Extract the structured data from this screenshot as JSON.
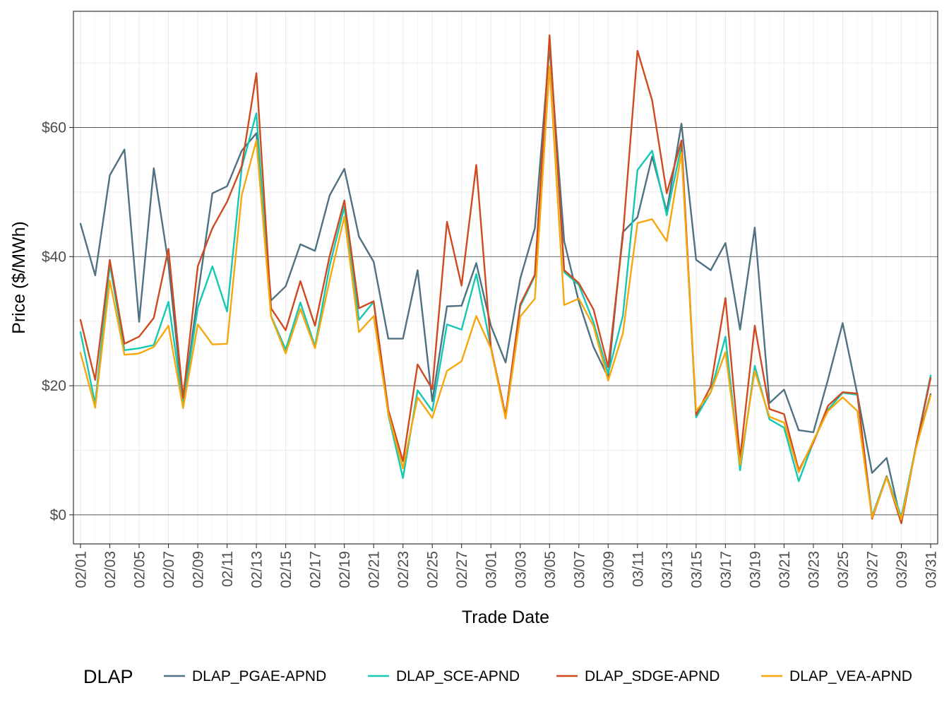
{
  "chart_data": {
    "type": "line",
    "title": "",
    "xlabel": "Trade Date",
    "ylabel": "Price ($/MWh)",
    "ylim": [
      -4.5,
      78
    ],
    "y_ticks": [
      0,
      20,
      40,
      60
    ],
    "y_tick_labels": [
      "$0",
      "$20",
      "$40",
      "$60"
    ],
    "x_tick_labels": [
      "02/01",
      "02/03",
      "02/05",
      "02/07",
      "02/09",
      "02/11",
      "02/13",
      "02/15",
      "02/17",
      "02/19",
      "02/21",
      "02/23",
      "02/25",
      "02/27",
      "03/01",
      "03/03",
      "03/05",
      "03/07",
      "03/09",
      "03/11",
      "03/13",
      "03/15",
      "03/17",
      "03/19",
      "03/21",
      "03/23",
      "03/25",
      "03/27",
      "03/29",
      "03/31"
    ],
    "dates": [
      "02/01",
      "02/02",
      "02/03",
      "02/04",
      "02/05",
      "02/06",
      "02/07",
      "02/08",
      "02/09",
      "02/10",
      "02/11",
      "02/12",
      "02/13",
      "02/14",
      "02/15",
      "02/16",
      "02/17",
      "02/18",
      "02/19",
      "02/20",
      "02/21",
      "02/22",
      "02/23",
      "02/24",
      "02/25",
      "02/26",
      "02/27",
      "02/28",
      "03/01",
      "03/02",
      "03/03",
      "03/04",
      "03/05",
      "03/06",
      "03/07",
      "03/08",
      "03/09",
      "03/10",
      "03/11",
      "03/12",
      "03/13",
      "03/14",
      "03/15",
      "03/16",
      "03/17",
      "03/18",
      "03/19",
      "03/20",
      "03/21",
      "03/22",
      "03/23",
      "03/24",
      "03/25",
      "03/26",
      "03/27",
      "03/28",
      "03/29",
      "03/30",
      "03/31"
    ],
    "grid": true,
    "legend_title": "DLAP",
    "legend_position": "bottom",
    "series": [
      {
        "name": "DLAP_PGAE-APND",
        "color": "#4E7282",
        "values": [
          45.1,
          37.1,
          52.6,
          56.6,
          29.9,
          53.7,
          38.9,
          17.0,
          34.0,
          49.8,
          50.9,
          56.4,
          59.1,
          33.2,
          35.4,
          41.9,
          40.9,
          49.5,
          53.6,
          43.1,
          39.2,
          27.3,
          27.3,
          37.9,
          17.6,
          32.3,
          32.4,
          39.0,
          29.3,
          23.6,
          36.6,
          44.4,
          72.6,
          42.4,
          33.0,
          26.0,
          21.3,
          43.8,
          46.1,
          55.5,
          47.0,
          60.6,
          39.5,
          37.9,
          42.1,
          28.7,
          44.5,
          17.3,
          19.4,
          13.1,
          12.8,
          21.0,
          29.7,
          18.7,
          6.5,
          8.8,
          -1.2,
          10.6,
          18.7
        ]
      },
      {
        "name": "DLAP_SCE-APND",
        "color": "#14C8B2",
        "values": [
          28.3,
          17.2,
          38.8,
          25.5,
          25.8,
          26.3,
          33.0,
          17.0,
          32.1,
          38.5,
          31.5,
          53.8,
          62.2,
          30.8,
          25.6,
          32.9,
          26.1,
          38.6,
          47.7,
          30.2,
          33.0,
          15.5,
          5.7,
          19.3,
          16.1,
          29.5,
          28.7,
          37.3,
          25.9,
          15.0,
          32.3,
          37.0,
          74.0,
          37.6,
          35.6,
          29.8,
          21.9,
          30.8,
          53.4,
          56.4,
          46.4,
          57.2,
          15.1,
          19.0,
          27.6,
          6.9,
          23.1,
          14.8,
          13.5,
          5.2,
          11.3,
          16.3,
          18.9,
          18.6,
          -0.2,
          6.0,
          -0.3,
          10.6,
          21.6
        ]
      },
      {
        "name": "DLAP_SDGE-APND",
        "color": "#D04A20",
        "values": [
          30.2,
          20.9,
          39.5,
          26.5,
          27.6,
          30.5,
          41.2,
          18.1,
          38.5,
          44.4,
          48.5,
          54.0,
          68.4,
          32.0,
          28.6,
          36.2,
          29.3,
          40.1,
          48.7,
          32.0,
          33.1,
          16.3,
          8.3,
          23.3,
          19.5,
          45.4,
          35.5,
          54.2,
          26.0,
          15.4,
          32.6,
          37.2,
          74.3,
          37.9,
          35.9,
          31.8,
          22.9,
          43.1,
          71.9,
          64.2,
          49.8,
          58.0,
          15.5,
          19.9,
          33.6,
          8.7,
          29.3,
          16.4,
          15.6,
          6.9,
          11.2,
          16.9,
          19.0,
          18.8,
          -0.6,
          5.9,
          -1.3,
          10.5,
          21.2
        ]
      },
      {
        "name": "DLAP_VEA-APND",
        "color": "#F7A70E",
        "values": [
          25.1,
          16.6,
          36.3,
          24.8,
          25.0,
          26.0,
          29.3,
          16.5,
          29.5,
          26.4,
          26.5,
          49.5,
          58.0,
          30.7,
          25.0,
          31.9,
          25.8,
          36.4,
          46.2,
          28.3,
          30.8,
          15.7,
          7.2,
          18.2,
          15.0,
          22.3,
          23.8,
          30.8,
          25.8,
          14.9,
          30.7,
          33.5,
          69.5,
          32.5,
          33.5,
          29.2,
          20.8,
          28.1,
          45.2,
          45.8,
          42.4,
          56.1,
          16.1,
          19.0,
          25.2,
          7.7,
          22.3,
          15.2,
          14.3,
          6.6,
          11.5,
          16.1,
          18.2,
          16.1,
          -0.4,
          5.8,
          -0.7,
          10.3,
          18.5
        ]
      }
    ]
  }
}
